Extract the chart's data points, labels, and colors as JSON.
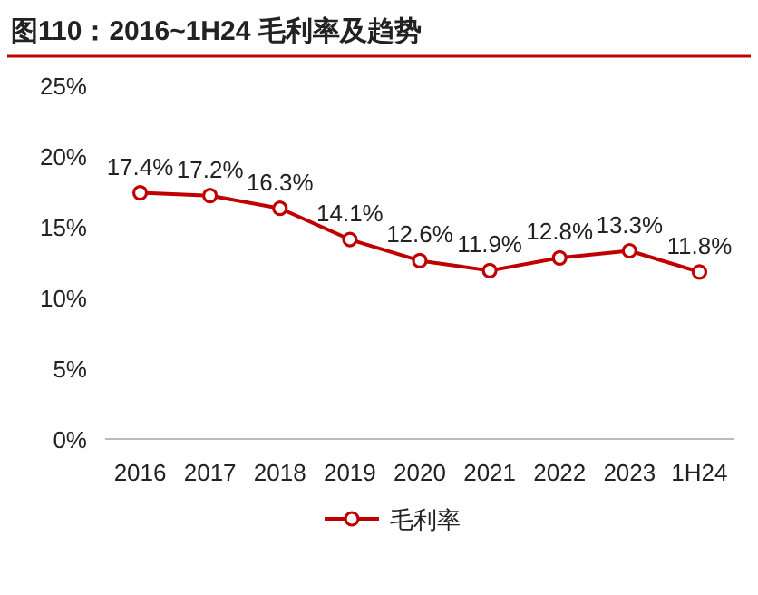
{
  "chart_data": {
    "type": "line",
    "title": "图110：2016~1H24 毛利率及趋势",
    "categories": [
      "2016",
      "2017",
      "2018",
      "2019",
      "2020",
      "2021",
      "2022",
      "2023",
      "1H24"
    ],
    "series": [
      {
        "name": "毛利率",
        "color": "#c00000",
        "values": [
          17.4,
          17.2,
          16.3,
          14.1,
          12.6,
          11.9,
          12.8,
          13.3,
          11.8
        ],
        "value_labels": [
          "17.4%",
          "17.2%",
          "16.3%",
          "14.1%",
          "12.6%",
          "11.9%",
          "12.8%",
          "13.3%",
          "11.8%"
        ]
      }
    ],
    "ylim": [
      0,
      25
    ],
    "yticks": [
      {
        "value": 0,
        "label": "0%"
      },
      {
        "value": 5,
        "label": "5%"
      },
      {
        "value": 10,
        "label": "10%"
      },
      {
        "value": 15,
        "label": "15%"
      },
      {
        "value": 20,
        "label": "20%"
      },
      {
        "value": 25,
        "label": "25%"
      }
    ],
    "marker": "circle",
    "line_style": "solid",
    "legend": "bottom"
  }
}
